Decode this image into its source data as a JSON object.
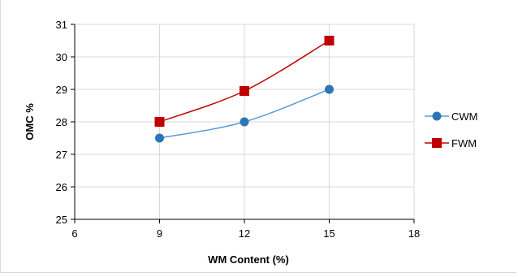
{
  "chart_data": {
    "type": "line",
    "xlabel": "WM Content  (%)",
    "ylabel": "OMC %",
    "xlim": [
      6,
      18
    ],
    "ylim": [
      25,
      31
    ],
    "xticks": [
      6,
      9,
      12,
      15,
      18
    ],
    "yticks": [
      25,
      26,
      27,
      28,
      29,
      30,
      31
    ],
    "grid": true,
    "legend_position": "right",
    "series": [
      {
        "name": "CWM",
        "marker": "circle",
        "color": "#5b9bd5",
        "markerColor": "#2e75b6",
        "x": [
          9,
          12,
          15
        ],
        "y": [
          27.5,
          28,
          29
        ]
      },
      {
        "name": "FWM",
        "marker": "square",
        "color": "#c00000",
        "markerColor": "#c00000",
        "x": [
          9,
          12,
          15
        ],
        "y": [
          28,
          28.95,
          30.5
        ]
      }
    ]
  }
}
